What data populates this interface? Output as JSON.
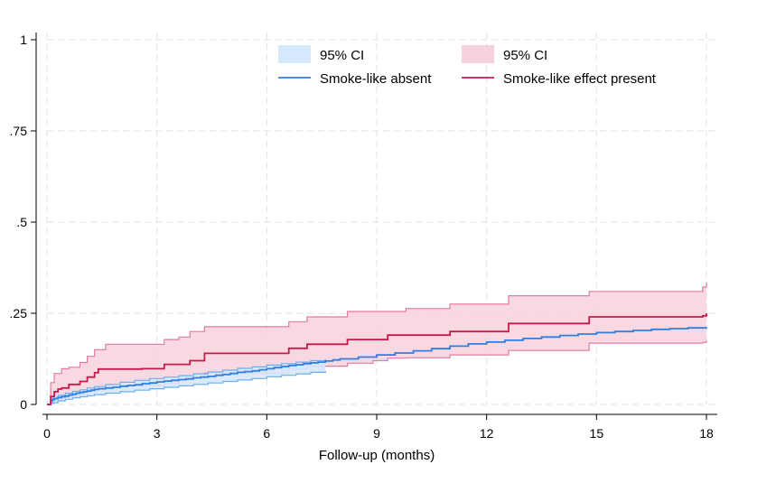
{
  "chart_data": {
    "type": "line",
    "title": "",
    "xlabel": "Follow-up (months)",
    "ylabel": "",
    "xlim": [
      0,
      18
    ],
    "ylim": [
      0,
      1
    ],
    "xticks": [
      0,
      3,
      6,
      9,
      12,
      15,
      18
    ],
    "xtick_labels": [
      "0",
      "3",
      "6",
      "9",
      "12",
      "15",
      "18"
    ],
    "yticks": [
      0,
      0.25,
      0.5,
      0.75,
      1
    ],
    "ytick_labels": [
      "0",
      ".25",
      ".5",
      ".75",
      "1"
    ],
    "grid": true,
    "legend": {
      "position": "top-right",
      "entries": [
        {
          "label": "95% CI",
          "kind": "band",
          "series": "absent"
        },
        {
          "label": "95% CI",
          "kind": "band",
          "series": "present"
        },
        {
          "label": "Smoke-like absent",
          "kind": "line",
          "series": "absent"
        },
        {
          "label": "Smoke-like effect present",
          "kind": "line",
          "series": "present"
        }
      ]
    },
    "colors": {
      "absent_line": "#2f7fe0",
      "absent_band": "#d6e8fb",
      "absent_band_edge": "#6aaef0",
      "present_line": "#c8194e",
      "present_band": "#f7d2dc",
      "present_band_edge": "#e37b9c"
    },
    "series": [
      {
        "name": "Smoke-like absent",
        "key": "absent",
        "x": [
          0,
          0.1,
          0.15,
          0.2,
          0.3,
          0.4,
          0.5,
          0.6,
          0.7,
          0.8,
          0.9,
          1.0,
          1.1,
          1.2,
          1.3,
          1.4,
          1.6,
          1.8,
          2.0,
          2.2,
          2.4,
          2.6,
          2.8,
          3.0,
          3.2,
          3.4,
          3.6,
          3.8,
          4.0,
          4.2,
          4.4,
          4.6,
          4.8,
          5.0,
          5.2,
          5.4,
          5.6,
          5.8,
          6.0,
          6.2,
          6.4,
          6.6,
          6.8,
          7.0,
          7.2,
          7.4,
          7.6,
          7.8,
          8.0,
          8.5,
          9.0,
          9.5,
          10.0,
          10.5,
          11.0,
          11.5,
          12.0,
          12.5,
          13.0,
          13.5,
          14.0,
          14.5,
          15.0,
          15.5,
          16.0,
          16.5,
          17.0,
          17.5,
          18.0
        ],
        "y": [
          0,
          0.01,
          0.013,
          0.016,
          0.019,
          0.021,
          0.023,
          0.026,
          0.028,
          0.031,
          0.033,
          0.035,
          0.037,
          0.039,
          0.041,
          0.043,
          0.045,
          0.047,
          0.05,
          0.052,
          0.054,
          0.057,
          0.059,
          0.062,
          0.064,
          0.066,
          0.068,
          0.07,
          0.073,
          0.075,
          0.077,
          0.08,
          0.082,
          0.085,
          0.088,
          0.09,
          0.092,
          0.095,
          0.098,
          0.101,
          0.104,
          0.107,
          0.109,
          0.112,
          0.114,
          0.116,
          0.119,
          0.122,
          0.125,
          0.13,
          0.136,
          0.141,
          0.147,
          0.153,
          0.16,
          0.166,
          0.171,
          0.176,
          0.181,
          0.185,
          0.189,
          0.193,
          0.197,
          0.2,
          0.203,
          0.206,
          0.208,
          0.21,
          0.212
        ],
        "ci_x": [
          0,
          0.1,
          0.3,
          0.5,
          0.7,
          0.9,
          1.1,
          1.3,
          1.6,
          2.0,
          2.4,
          2.8,
          3.2,
          3.6,
          4.0,
          4.4,
          4.8,
          5.2,
          5.6,
          6.0,
          6.4,
          6.8,
          7.2,
          7.6
        ],
        "ci_lower": [
          0,
          0.005,
          0.01,
          0.014,
          0.018,
          0.021,
          0.024,
          0.027,
          0.031,
          0.035,
          0.039,
          0.043,
          0.047,
          0.051,
          0.055,
          0.059,
          0.063,
          0.067,
          0.071,
          0.076,
          0.08,
          0.084,
          0.088,
          0.092
        ],
        "ci_upper": [
          0,
          0.017,
          0.025,
          0.031,
          0.036,
          0.04,
          0.045,
          0.049,
          0.055,
          0.061,
          0.066,
          0.071,
          0.075,
          0.079,
          0.084,
          0.089,
          0.094,
          0.099,
          0.103,
          0.108,
          0.112,
          0.116,
          0.12,
          0.124
        ]
      },
      {
        "name": "Smoke-like effect present",
        "key": "present",
        "x": [
          0,
          0.1,
          0.2,
          0.3,
          0.4,
          0.6,
          0.9,
          1.1,
          1.3,
          1.4,
          2.6,
          3.2,
          3.9,
          4.3,
          5.5,
          6.6,
          7.1,
          8.2,
          9.3,
          9.8,
          11.0,
          12.6,
          14.2,
          14.8,
          15.3,
          17.9,
          18.0
        ],
        "y": [
          0,
          0.022,
          0.035,
          0.042,
          0.045,
          0.055,
          0.063,
          0.075,
          0.087,
          0.097,
          0.098,
          0.11,
          0.12,
          0.14,
          0.14,
          0.154,
          0.165,
          0.178,
          0.19,
          0.19,
          0.2,
          0.222,
          0.222,
          0.24,
          0.24,
          0.243,
          0.25
        ],
        "ci_x": [
          0,
          0.1,
          0.2,
          0.4,
          0.6,
          0.9,
          1.1,
          1.3,
          1.6,
          2.6,
          3.2,
          3.6,
          3.9,
          4.3,
          5.5,
          6.6,
          7.1,
          8.2,
          8.9,
          9.3,
          9.8,
          11.0,
          12.6,
          14.2,
          14.8,
          15.3,
          17.9,
          18.0
        ],
        "ci_lower": [
          0,
          0.003,
          0.012,
          0.018,
          0.022,
          0.026,
          0.034,
          0.045,
          0.05,
          0.052,
          0.058,
          0.068,
          0.074,
          0.086,
          0.086,
          0.097,
          0.105,
          0.113,
          0.12,
          0.127,
          0.128,
          0.136,
          0.148,
          0.148,
          0.168,
          0.168,
          0.17,
          0.175
        ],
        "ci_upper": [
          0,
          0.06,
          0.085,
          0.098,
          0.102,
          0.115,
          0.132,
          0.15,
          0.165,
          0.165,
          0.178,
          0.185,
          0.2,
          0.213,
          0.213,
          0.227,
          0.24,
          0.255,
          0.255,
          0.255,
          0.263,
          0.275,
          0.298,
          0.298,
          0.31,
          0.31,
          0.322,
          0.335
        ]
      }
    ]
  }
}
